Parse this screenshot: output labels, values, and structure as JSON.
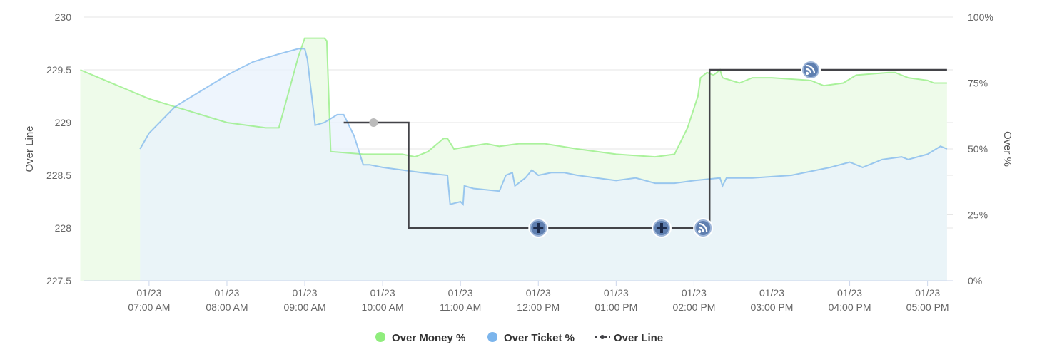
{
  "chart_data": {
    "type": "line",
    "x_labels": [
      {
        "date": "01/23",
        "time": "07:00 AM"
      },
      {
        "date": "01/23",
        "time": "08:00 AM"
      },
      {
        "date": "01/23",
        "time": "09:00 AM"
      },
      {
        "date": "01/23",
        "time": "10:00 AM"
      },
      {
        "date": "01/23",
        "time": "11:00 AM"
      },
      {
        "date": "01/23",
        "time": "12:00 PM"
      },
      {
        "date": "01/23",
        "time": "01:00 PM"
      },
      {
        "date": "01/23",
        "time": "02:00 PM"
      },
      {
        "date": "01/23",
        "time": "03:00 PM"
      },
      {
        "date": "01/23",
        "time": "04:00 PM"
      },
      {
        "date": "01/23",
        "time": "05:00 PM"
      }
    ],
    "x_range": [
      "06:10",
      "17:20"
    ],
    "y_left": {
      "title": "Over Line",
      "min": 227.5,
      "max": 230,
      "ticks": [
        "227.5",
        "228",
        "228.5",
        "229",
        "229.5",
        "230"
      ]
    },
    "y_right": {
      "title": "Over %",
      "min": 0,
      "max": 100,
      "ticks": [
        "0%",
        "25%",
        "50%",
        "75%",
        "100%"
      ]
    },
    "grid": true,
    "legend_position": "bottom-center",
    "series": [
      {
        "name": "Over Money %",
        "axis": "right",
        "color": "#90ed7d",
        "fill": "#eefbea",
        "points": [
          [
            "06:07",
            80
          ],
          [
            "07:00",
            69
          ],
          [
            "08:00",
            60
          ],
          [
            "08:30",
            58
          ],
          [
            "08:40",
            58
          ],
          [
            "08:55",
            85
          ],
          [
            "09:00",
            92
          ],
          [
            "09:15",
            92
          ],
          [
            "09:17",
            91
          ],
          [
            "09:20",
            49
          ],
          [
            "09:45",
            48
          ],
          [
            "10:15",
            48
          ],
          [
            "10:25",
            47
          ],
          [
            "10:35",
            49
          ],
          [
            "10:47",
            54
          ],
          [
            "10:50",
            54
          ],
          [
            "10:55",
            50
          ],
          [
            "11:20",
            52
          ],
          [
            "11:30",
            51
          ],
          [
            "11:45",
            52
          ],
          [
            "12:05",
            52
          ],
          [
            "12:30",
            50
          ],
          [
            "13:00",
            48
          ],
          [
            "13:30",
            47
          ],
          [
            "13:45",
            48
          ],
          [
            "13:55",
            58
          ],
          [
            "14:03",
            70
          ],
          [
            "14:05",
            77
          ],
          [
            "14:10",
            79
          ],
          [
            "14:15",
            78
          ],
          [
            "14:20",
            80
          ],
          [
            "14:22",
            77
          ],
          [
            "14:35",
            75
          ],
          [
            "14:45",
            77
          ],
          [
            "15:00",
            77
          ],
          [
            "15:30",
            76
          ],
          [
            "15:40",
            74
          ],
          [
            "15:55",
            75
          ],
          [
            "16:05",
            78
          ],
          [
            "16:30",
            79
          ],
          [
            "16:35",
            79
          ],
          [
            "16:45",
            77
          ],
          [
            "17:00",
            76
          ],
          [
            "17:05",
            75
          ],
          [
            "17:15",
            75
          ]
        ]
      },
      {
        "name": "Over Ticket %",
        "axis": "right",
        "color": "#7cb5ec",
        "fill": "#e8f2fc",
        "points": [
          [
            "06:53",
            50
          ],
          [
            "07:00",
            56
          ],
          [
            "07:20",
            66
          ],
          [
            "07:40",
            72
          ],
          [
            "08:00",
            78
          ],
          [
            "08:20",
            83
          ],
          [
            "08:40",
            86
          ],
          [
            "08:55",
            88
          ],
          [
            "09:00",
            88
          ],
          [
            "09:02",
            84
          ],
          [
            "09:08",
            59
          ],
          [
            "09:15",
            60
          ],
          [
            "09:25",
            63
          ],
          [
            "09:30",
            63
          ],
          [
            "09:38",
            55
          ],
          [
            "09:45",
            44
          ],
          [
            "09:50",
            44
          ],
          [
            "10:00",
            43
          ],
          [
            "10:30",
            41
          ],
          [
            "10:50",
            40
          ],
          [
            "10:52",
            29
          ],
          [
            "11:00",
            30
          ],
          [
            "11:02",
            29
          ],
          [
            "11:03",
            36
          ],
          [
            "11:10",
            35
          ],
          [
            "11:30",
            34
          ],
          [
            "11:35",
            40
          ],
          [
            "11:40",
            41
          ],
          [
            "11:42",
            36
          ],
          [
            "11:50",
            39
          ],
          [
            "11:55",
            42
          ],
          [
            "12:00",
            40
          ],
          [
            "12:10",
            41
          ],
          [
            "12:20",
            41
          ],
          [
            "12:30",
            40
          ],
          [
            "12:45",
            39
          ],
          [
            "13:00",
            38
          ],
          [
            "13:15",
            39
          ],
          [
            "13:30",
            37
          ],
          [
            "13:45",
            37
          ],
          [
            "14:00",
            38
          ],
          [
            "14:20",
            39
          ],
          [
            "14:22",
            36
          ],
          [
            "14:25",
            39
          ],
          [
            "14:45",
            39
          ],
          [
            "15:15",
            40
          ],
          [
            "15:25",
            41
          ],
          [
            "15:45",
            43
          ],
          [
            "16:00",
            45
          ],
          [
            "16:10",
            43
          ],
          [
            "16:25",
            46
          ],
          [
            "16:40",
            47
          ],
          [
            "16:45",
            46
          ],
          [
            "17:00",
            48
          ],
          [
            "17:10",
            51
          ],
          [
            "17:15",
            50
          ]
        ]
      },
      {
        "name": "Over Line",
        "axis": "left",
        "color": "#434348",
        "step": true,
        "points": [
          [
            "09:30",
            229
          ],
          [
            "10:20",
            229
          ],
          [
            "10:20",
            228
          ],
          [
            "14:12",
            228
          ],
          [
            "14:12",
            229.5
          ],
          [
            "17:15",
            229.5
          ]
        ],
        "markers": [
          {
            "x": "09:53",
            "y": 229,
            "type": "dot"
          },
          {
            "x": "12:00",
            "y": 228,
            "type": "plus-icon"
          },
          {
            "x": "13:35",
            "y": 228,
            "type": "plus-icon"
          },
          {
            "x": "14:07",
            "y": 228,
            "type": "rss-icon"
          },
          {
            "x": "15:30",
            "y": 229.5,
            "type": "rss-icon"
          }
        ]
      }
    ]
  }
}
